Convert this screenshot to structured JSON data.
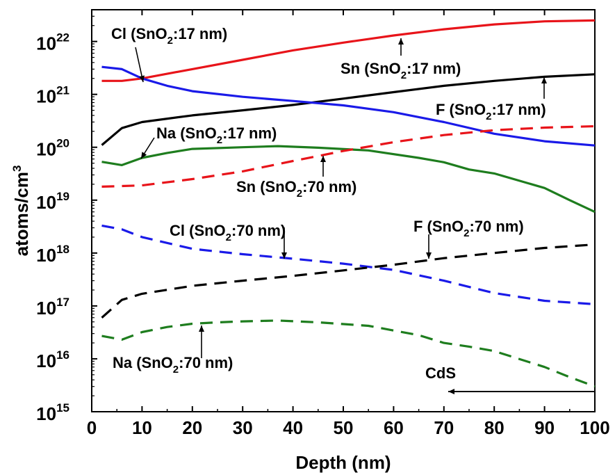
{
  "chart_data": {
    "type": "line",
    "title": "",
    "xlabel": "Depth (nm)",
    "ylabel": "atoms/cm3",
    "ylabel_base": "atoms/cm",
    "ylabel_sup": "3",
    "xlim": [
      0,
      100
    ],
    "ylim_log10": [
      15,
      22.6
    ],
    "yscale": "log",
    "xticks": [
      "0",
      "10",
      "20",
      "30",
      "40",
      "50",
      "60",
      "70",
      "80",
      "90",
      "100"
    ],
    "yticks": [
      {
        "exp": 15,
        "base": "10",
        "sup": "15"
      },
      {
        "exp": 16,
        "base": "10",
        "sup": "16"
      },
      {
        "exp": 17,
        "base": "10",
        "sup": "17"
      },
      {
        "exp": 18,
        "base": "10",
        "sup": "18"
      },
      {
        "exp": 19,
        "base": "10",
        "sup": "19"
      },
      {
        "exp": 20,
        "base": "10",
        "sup": "20"
      },
      {
        "exp": 21,
        "base": "10",
        "sup": "21"
      },
      {
        "exp": 22,
        "base": "10",
        "sup": "22"
      }
    ],
    "series": [
      {
        "name": "Sn (SnO2:17 nm)",
        "color": "#e8141a",
        "dash": false,
        "x": [
          2,
          6,
          10,
          20,
          30,
          40,
          50,
          60,
          70,
          80,
          90,
          100
        ],
        "y": [
          1.8e+21,
          1.8e+21,
          2e+21,
          3e+21,
          4.5e+21,
          6.8e+21,
          9.5e+21,
          1.3e+22,
          1.7e+22,
          2.1e+22,
          2.4e+22,
          2.5e+22
        ]
      },
      {
        "name": "F (SnO2:17 nm)",
        "color": "#000000",
        "dash": false,
        "x": [
          2,
          6,
          10,
          20,
          30,
          40,
          50,
          60,
          70,
          80,
          90,
          100
        ],
        "y": [
          1.1e+20,
          2.3e+20,
          3e+20,
          4e+20,
          5e+20,
          6.3e+20,
          8.3e+20,
          1.1e+21,
          1.45e+21,
          1.8e+21,
          2.15e+21,
          2.4e+21
        ]
      },
      {
        "name": "Cl (SnO2:17 nm)",
        "color": "#1a1ae8",
        "dash": false,
        "x": [
          2,
          6,
          10,
          15,
          20,
          30,
          40,
          50,
          60,
          70,
          80,
          90,
          100
        ],
        "y": [
          3.3e+21,
          3e+21,
          2e+21,
          1.45e+21,
          1.15e+21,
          9e+20,
          7.5e+20,
          6.2e+20,
          4.6e+20,
          3e+20,
          1.8e+20,
          1.3e+20,
          1.08e+20
        ]
      },
      {
        "name": "Na (SnO2:17 nm)",
        "color": "#1e7d1e",
        "dash": false,
        "x": [
          2,
          6,
          10,
          15,
          20,
          30,
          37,
          45,
          55,
          65,
          70,
          75,
          80,
          90,
          95,
          100
        ],
        "y": [
          5.3e+19,
          4.6e+19,
          6.3e+19,
          7.8e+19,
          9.3e+19,
          1e+20,
          1.05e+20,
          9.8e+19,
          8.7e+19,
          6.3e+19,
          5.2e+19,
          3.8e+19,
          3.2e+19,
          1.7e+19,
          1e+19,
          6e+18
        ]
      },
      {
        "name": "Sn (SnO2:70 nm)",
        "color": "#e8141a",
        "dash": true,
        "x": [
          2,
          10,
          20,
          30,
          40,
          50,
          60,
          70,
          80,
          90,
          100
        ],
        "y": [
          1.8e+19,
          1.9e+19,
          2.5e+19,
          3.5e+19,
          5.5e+19,
          8.5e+19,
          1.25e+20,
          1.7e+20,
          2.1e+20,
          2.35e+20,
          2.5e+20
        ]
      },
      {
        "name": "Cl (SnO2:70 nm)",
        "color": "#1a1ae8",
        "dash": true,
        "x": [
          2,
          6,
          10,
          20,
          30,
          40,
          50,
          60,
          70,
          80,
          90,
          100
        ],
        "y": [
          3.3e+18,
          2.8e+18,
          2e+18,
          1.2e+18,
          9.5e+17,
          7.8e+17,
          6.3e+17,
          4.8e+17,
          3e+17,
          1.75e+17,
          1.25e+17,
          1.08e+17
        ]
      },
      {
        "name": "F (SnO2:70 nm)",
        "color": "#000000",
        "dash": true,
        "x": [
          2,
          6,
          10,
          20,
          30,
          40,
          50,
          60,
          70,
          80,
          90,
          100
        ],
        "y": [
          6e+16,
          1.3e+17,
          1.7e+17,
          2.4e+17,
          3e+17,
          3.7e+17,
          4.7e+17,
          6e+17,
          8e+17,
          1e+18,
          1.25e+18,
          1.45e+18
        ]
      },
      {
        "name": "Na (SnO2:70 nm)",
        "color": "#1e7d1e",
        "dash": true,
        "x": [
          2,
          6,
          10,
          15,
          20,
          25,
          30,
          37,
          45,
          55,
          65,
          70,
          75,
          80,
          90,
          95,
          100
        ],
        "y": [
          2.7e+16,
          2.3e+16,
          3.2e+16,
          4e+16,
          4.6e+16,
          4.9e+16,
          5.1e+16,
          5.3e+16,
          4.9e+16,
          4.2e+16,
          2.8e+16,
          2e+16,
          1.7e+16,
          1.4e+16,
          7000000000000000.0,
          4500000000000000.0,
          3000000000000000.0
        ]
      }
    ],
    "annotations": [
      {
        "id": "cl17",
        "pre": "Cl (SnO",
        "sub": "2",
        "post": ":17 nm)"
      },
      {
        "id": "sn17",
        "pre": "Sn (SnO",
        "sub": "2",
        "post": ":17 nm)"
      },
      {
        "id": "f17",
        "pre": "F (SnO",
        "sub": "2",
        "post": ":17 nm)"
      },
      {
        "id": "na17",
        "pre": "Na (SnO",
        "sub": "2",
        "post": ":17 nm)"
      },
      {
        "id": "sn70",
        "pre": "Sn (SnO",
        "sub": "2",
        "post": ":70 nm)"
      },
      {
        "id": "cl70",
        "pre": "Cl (SnO",
        "sub": "2",
        "post": ":70 nm)"
      },
      {
        "id": "f70",
        "pre": "F (SnO",
        "sub": "2",
        "post": ":70 nm)"
      },
      {
        "id": "na70",
        "pre": "Na (SnO",
        "sub": "2",
        "post": ":70 nm)"
      },
      {
        "id": "cds",
        "pre": "CdS",
        "sub": "",
        "post": ""
      }
    ]
  }
}
